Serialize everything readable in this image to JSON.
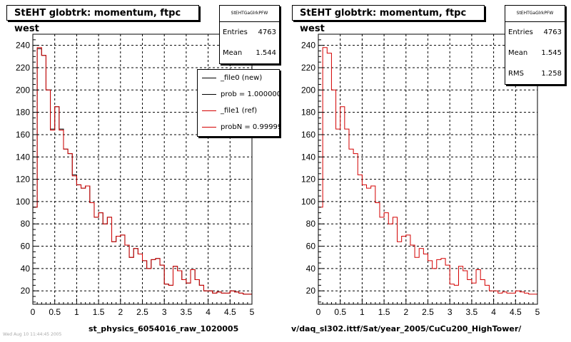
{
  "footer_left": "Wed Aug 10 11:44:45 2005",
  "legend": {
    "entries": [
      {
        "label": "_file0 (new)",
        "color": "#000000"
      },
      {
        "label": "prob = 1.000000",
        "color": "#000000"
      },
      {
        "label": "_file1 (ref)",
        "color": "#d40000"
      },
      {
        "label": "probN = 0.999995",
        "color": "#d40000"
      }
    ]
  },
  "pads": [
    {
      "title": "StEHT globtrk: momentum, ftpc west",
      "stats": {
        "name": "StEHTGaGlrkPFW",
        "rows": [
          [
            "Entries",
            "4763"
          ],
          [
            "Mean",
            "1.544"
          ]
        ]
      },
      "xlabel": "st_physics_6054016_raw_1020005"
    },
    {
      "title": "StEHT globtrk: momentum, ftpc west",
      "stats": {
        "name": "StEHTGaGlrkPFW",
        "rows": [
          [
            "Entries",
            "4763"
          ],
          [
            "Mean",
            "1.545"
          ],
          [
            "RMS",
            "1.258"
          ]
        ]
      },
      "xlabel": "v/daq_sl302.ittf/Sat/year_2005/CuCu200_HighTower/"
    }
  ],
  "chart_data": [
    {
      "type": "bar",
      "title": "StEHT globtrk: momentum, ftpc west",
      "xlabel": "st_physics_6054016_raw_1020005",
      "ylabel": "",
      "xlim": [
        0,
        5
      ],
      "ylim": [
        8,
        250
      ],
      "bin_width": 0.1,
      "x_ticks": [
        "0",
        "0.5",
        "1",
        "1.5",
        "2",
        "2.5",
        "3",
        "3.5",
        "4",
        "4.5",
        "5"
      ],
      "y_ticks": [
        "20",
        "40",
        "60",
        "80",
        "100",
        "120",
        "140",
        "160",
        "180",
        "200",
        "220",
        "240"
      ],
      "grid": true,
      "legend_position": "top-right",
      "series": [
        {
          "name": "_file0 (new)",
          "color": "#000000",
          "values": [
            95,
            237,
            231,
            200,
            165,
            185,
            165,
            147,
            143,
            124,
            115,
            112,
            114,
            99,
            86,
            90,
            80,
            86,
            64,
            69,
            70,
            61,
            50,
            58,
            53,
            47,
            40,
            48,
            49,
            43,
            26,
            25,
            42,
            38,
            30,
            27,
            39,
            30,
            25,
            20,
            20,
            18,
            19,
            18,
            18,
            20,
            19,
            18,
            17,
            17
          ]
        },
        {
          "name": "_file1 (ref)",
          "color": "#d40000",
          "values": [
            95,
            238,
            231,
            200,
            164,
            185,
            164,
            147,
            143,
            123,
            115,
            112,
            114,
            99,
            86,
            90,
            80,
            86,
            64,
            69,
            70,
            61,
            50,
            58,
            53,
            47,
            40,
            48,
            49,
            43,
            26,
            25,
            42,
            38,
            30,
            27,
            39,
            30,
            25,
            20,
            20,
            18,
            19,
            18,
            18,
            20,
            19,
            18,
            17,
            17
          ]
        }
      ]
    },
    {
      "type": "bar",
      "title": "StEHT globtrk: momentum, ftpc west",
      "xlabel": "v/daq_sl302.ittf/Sat/year_2005/CuCu200_HighTower/",
      "ylabel": "",
      "xlim": [
        0,
        5
      ],
      "ylim": [
        8,
        250
      ],
      "bin_width": 0.1,
      "x_ticks": [
        "0",
        "0.5",
        "1",
        "1.5",
        "2",
        "2.5",
        "3",
        "3.5",
        "4",
        "4.5",
        "5"
      ],
      "y_ticks": [
        "20",
        "40",
        "60",
        "80",
        "100",
        "120",
        "140",
        "160",
        "180",
        "200",
        "220",
        "240"
      ],
      "grid": true,
      "series": [
        {
          "name": "",
          "color": "#d40000",
          "values": [
            95,
            238,
            233,
            200,
            165,
            185,
            165,
            147,
            143,
            124,
            115,
            112,
            114,
            99,
            86,
            90,
            80,
            86,
            64,
            69,
            70,
            61,
            50,
            58,
            53,
            47,
            40,
            48,
            49,
            43,
            26,
            25,
            42,
            38,
            30,
            27,
            39,
            30,
            25,
            20,
            20,
            18,
            19,
            18,
            18,
            20,
            19,
            18,
            17,
            17
          ]
        }
      ]
    }
  ]
}
